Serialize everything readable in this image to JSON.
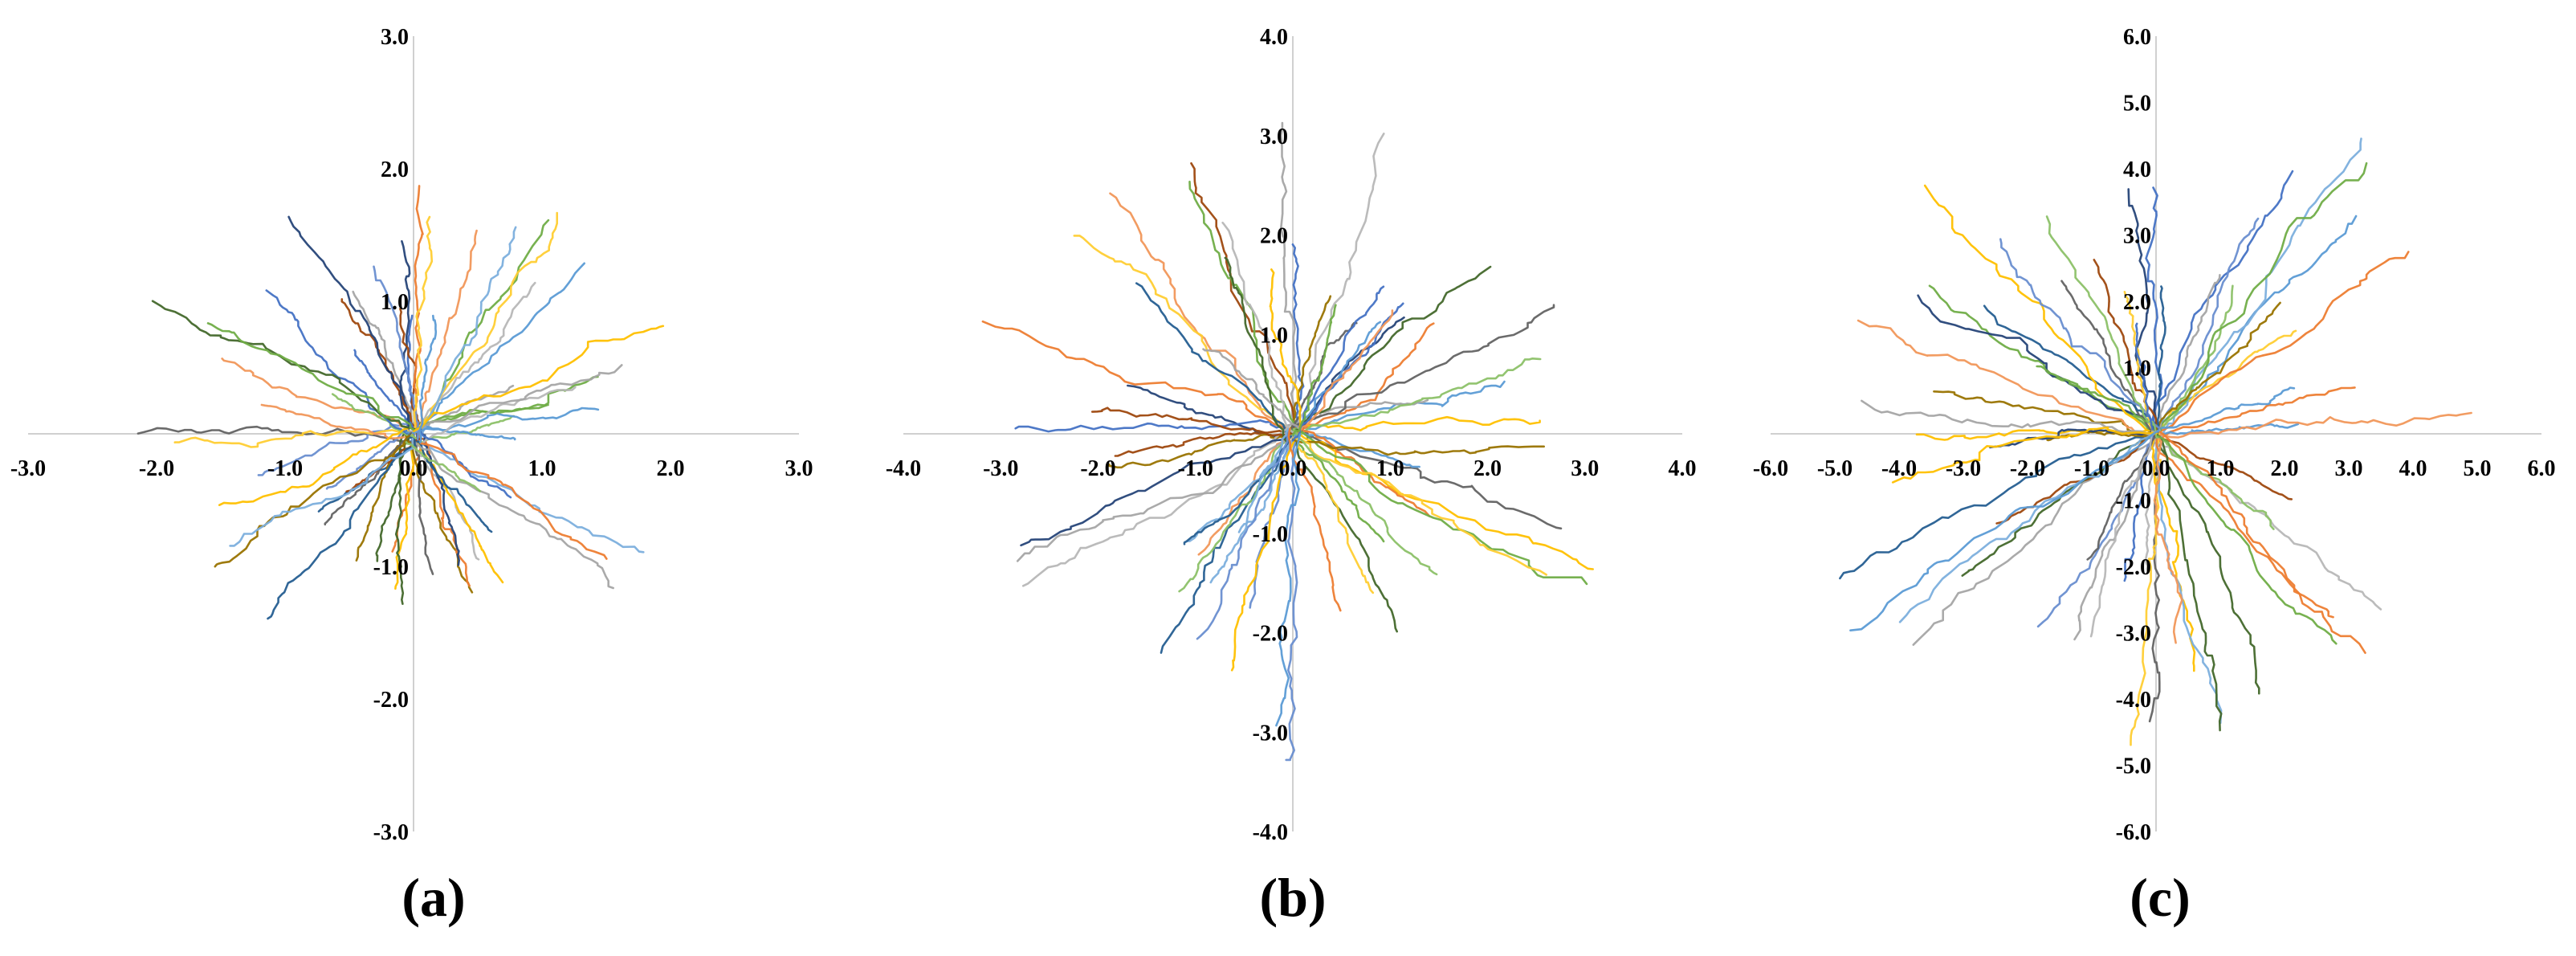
{
  "colors": [
    "#4472c4",
    "#ed7d31",
    "#a5a5a5",
    "#ffc000",
    "#5b9bd5",
    "#70ad47",
    "#264478",
    "#9e480e",
    "#636363",
    "#997300",
    "#255e91",
    "#43682b",
    "#698ed0",
    "#f1975a",
    "#b7b7b7",
    "#ffcd33",
    "#7cafdd",
    "#8cc168"
  ],
  "chart_data": [
    {
      "type": "line",
      "title": "",
      "xlabel": "",
      "ylabel": "",
      "panel_label": "(a)",
      "xlim": [
        -3,
        3
      ],
      "ylim": [
        -3,
        3
      ],
      "xticks": [
        "-3.0",
        "-2.0",
        "-1.0",
        "0.0",
        "1.0",
        "2.0",
        "3.0"
      ],
      "yticks": [
        "-3.0",
        "-2.0",
        "-1.0",
        "0.0",
        "1.0",
        "2.0",
        "3.0"
      ],
      "tick_values": [
        -3,
        -2,
        -1,
        0,
        1,
        2,
        3
      ],
      "grid": false,
      "series_count": 60,
      "max_reach": 1.8,
      "seed": 11
    },
    {
      "type": "line",
      "title": "",
      "xlabel": "",
      "ylabel": "",
      "panel_label": "(b)",
      "xlim": [
        -4,
        4
      ],
      "ylim": [
        -4,
        4
      ],
      "xticks": [
        "-4.0",
        "-3.0",
        "-2.0",
        "-1.0",
        "0.0",
        "1.0",
        "2.0",
        "3.0",
        "4.0"
      ],
      "yticks": [
        "-4.0",
        "-3.0",
        "-2.0",
        "-1.0",
        "0.0",
        "1.0",
        "2.0",
        "3.0",
        "4.0"
      ],
      "tick_values": [
        -4,
        -3,
        -2,
        -1,
        0,
        1,
        2,
        3,
        4
      ],
      "grid": false,
      "series_count": 60,
      "max_reach": 3.0,
      "seed": 23
    },
    {
      "type": "line",
      "title": "",
      "xlabel": "",
      "ylabel": "",
      "panel_label": "(c)",
      "xlim": [
        -6,
        6
      ],
      "ylim": [
        -6,
        6
      ],
      "xticks": [
        "-6.0",
        "-5.0",
        "-4.0",
        "-3.0",
        "-2.0",
        "-1.0",
        "0.0",
        "1.0",
        "2.0",
        "3.0",
        "4.0",
        "5.0",
        "6.0"
      ],
      "yticks": [
        "-6.0",
        "-5.0",
        "-4.0",
        "-3.0",
        "-2.0",
        "-1.0",
        "0.0",
        "1.0",
        "2.0",
        "3.0",
        "4.0",
        "5.0",
        "6.0"
      ],
      "tick_values": [
        -6,
        -5,
        -4,
        -3,
        -2,
        -1,
        0,
        1,
        2,
        3,
        4,
        5,
        6
      ],
      "grid": false,
      "series_count": 60,
      "max_reach": 4.8,
      "seed": 37
    }
  ]
}
